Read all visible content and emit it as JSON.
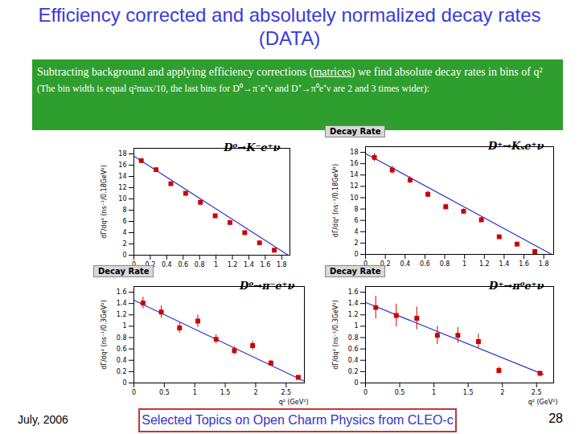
{
  "slide": {
    "title": "Efficiency corrected and absolutely normalized decay rates (DATA)",
    "note": [
      "Subtracting background and applying efficiency corrections (",
      "matrices",
      ") we find absolute decay rates in bins of q²",
      " (The bin width is equal q²max/10, the last bins for D⁰→π⁻e⁺ν and D⁺→π⁰e⁺ν are 2 and 3 times wider):"
    ],
    "footer_date": "July, 2006",
    "footer_center": "Selected Topics on Open Charm Physics from CLEO-c",
    "page": "28"
  },
  "chart_data": [
    {
      "type": "scatter",
      "annotation": "D⁰→K⁻e⁺ν",
      "x_label": null,
      "y_label": "dΓ/dq² (ns⁻¹/0.18GeV²)",
      "x": [
        0.09,
        0.27,
        0.45,
        0.63,
        0.81,
        0.99,
        1.17,
        1.35,
        1.53,
        1.71
      ],
      "values": [
        16.8,
        15.2,
        12.7,
        11.0,
        9.4,
        7.0,
        5.8,
        4.0,
        2.2,
        0.9
      ],
      "errors": [
        0.4,
        0.35,
        0.3,
        0.3,
        0.25,
        0.22,
        0.2,
        0.18,
        0.15,
        0.1
      ],
      "color": "#cc0000",
      "marker": "square",
      "fit": {
        "x": [
          0,
          1.88
        ],
        "values": [
          17.6,
          0
        ],
        "color": "#3333cc"
      },
      "xlim": [
        0,
        1.9
      ],
      "xticks": [
        0,
        0.2,
        0.4,
        0.6,
        0.8,
        1,
        1.2,
        1.4,
        1.6,
        1.8
      ],
      "ylim": [
        0,
        19
      ],
      "yticks": [
        0,
        2,
        4,
        6,
        8,
        10,
        12,
        14,
        16,
        18
      ],
      "grid": false
    },
    {
      "type": "scatter",
      "panel_title": "Decay Rate",
      "annotation": "D⁺→Kₛe⁺ν",
      "x_label": null,
      "y_label": "dΓ/dq² (ns⁻¹/0.18GeV²)",
      "x": [
        0.09,
        0.27,
        0.45,
        0.63,
        0.81,
        0.99,
        1.17,
        1.35,
        1.53,
        1.71
      ],
      "values": [
        17.1,
        14.9,
        13.1,
        10.6,
        8.4,
        7.6,
        6.1,
        3.1,
        1.8,
        0.5
      ],
      "errors": [
        0.7,
        0.65,
        0.6,
        0.55,
        0.5,
        0.45,
        0.45,
        0.35,
        0.3,
        0.2
      ],
      "color": "#cc0000",
      "marker": "square",
      "fit": {
        "x": [
          0,
          1.88
        ],
        "values": [
          17.8,
          0
        ],
        "color": "#3333cc"
      },
      "xlim": [
        0,
        1.9
      ],
      "xticks": [
        0,
        0.2,
        0.4,
        0.6,
        0.8,
        1,
        1.2,
        1.4,
        1.6,
        1.8
      ],
      "ylim": [
        0,
        19
      ],
      "yticks": [
        0,
        2,
        4,
        6,
        8,
        10,
        12,
        14,
        16,
        18
      ],
      "grid": false
    },
    {
      "type": "scatter",
      "panel_title": "Decay Rate",
      "annotation": "D⁰→π⁻e⁺ν",
      "x_label": "q² (GeV²)",
      "y_label": "dΓ/dq² (ns⁻¹/0.3GeV²)",
      "x": [
        0.15,
        0.45,
        0.75,
        1.05,
        1.35,
        1.65,
        1.95,
        2.25,
        2.7
      ],
      "values": [
        1.41,
        1.25,
        0.97,
        1.09,
        0.77,
        0.57,
        0.66,
        0.35,
        0.1
      ],
      "errors": [
        0.1,
        0.11,
        0.09,
        0.11,
        0.08,
        0.07,
        0.08,
        0.05,
        0.03
      ],
      "color": "#cc0000",
      "marker": "square",
      "fit": {
        "x": [
          0,
          2.8
        ],
        "values": [
          1.46,
          0.03
        ],
        "color": "#3333cc"
      },
      "xlim": [
        0,
        2.8
      ],
      "xticks": [
        0,
        0.5,
        1,
        1.5,
        2,
        2.5
      ],
      "ylim": [
        0,
        1.7
      ],
      "yticks": [
        0,
        0.2,
        0.4,
        0.6,
        0.8,
        1,
        1.2,
        1.4,
        1.6
      ],
      "grid": false
    },
    {
      "type": "scatter",
      "panel_title": "Decay Rate",
      "annotation": "D⁺→π⁰e⁺ν",
      "x_label": "q² (GeV²)",
      "y_label": "dΓ/dq² (ns⁻¹/0.3GeV²)",
      "x": [
        0.15,
        0.45,
        0.75,
        1.05,
        1.35,
        1.65,
        1.95,
        2.55
      ],
      "values": [
        1.33,
        1.19,
        1.14,
        0.84,
        0.84,
        0.73,
        0.22,
        0.17
      ],
      "errors": [
        0.2,
        0.2,
        0.2,
        0.16,
        0.14,
        0.13,
        0.06,
        0.04
      ],
      "color": "#cc0000",
      "marker": "square",
      "fit": {
        "x": [
          0,
          2.6
        ],
        "values": [
          1.42,
          0.15
        ],
        "color": "#3333cc"
      },
      "xlim": [
        0,
        2.75
      ],
      "xticks": [
        0,
        0.5,
        1,
        1.5,
        2,
        2.5
      ],
      "ylim": [
        0,
        1.7
      ],
      "yticks": [
        0,
        0.2,
        0.4,
        0.6,
        0.8,
        1,
        1.2,
        1.4,
        1.6
      ],
      "grid": false
    }
  ]
}
